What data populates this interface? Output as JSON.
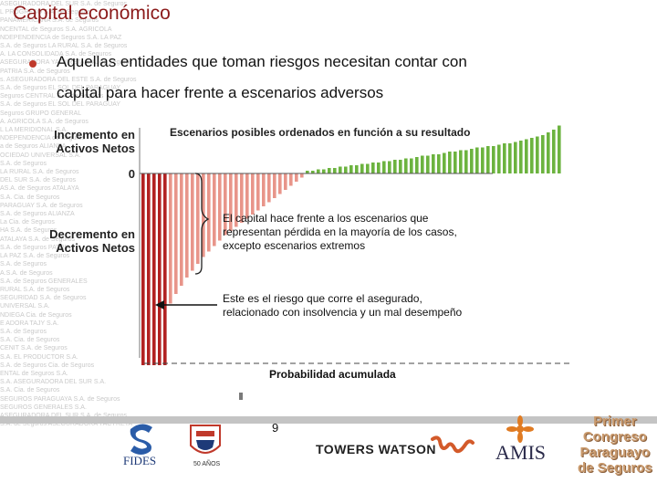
{
  "slide": {
    "title": "Capital económico",
    "bullet_line1": "Aquellas entidades que toman riesgos necesitan contar con",
    "bullet_line2": "capital para hacer frente a escenarios adversos",
    "page_number": "9"
  },
  "labels": {
    "increment_line1": "Incremento en",
    "increment_line2": "Activos Netos",
    "decrement_line1": "Decremento en",
    "decrement_line2": "Activos Netos",
    "zero": "0"
  },
  "notes": {
    "note1_line1": "El capital hace frente a los escenarios que",
    "note1_line2": "representan pérdida en la mayoría de los casos,",
    "note1_line3": "excepto escenarios extremos",
    "note2_line1": "Este es el riesgo que corre el asegurado,",
    "note2_line2": "relacionado con insolvencia y un mal desempeño"
  },
  "background_text": [
    "ASEGURADORA DEL SUR S.A. de Seguros",
    "L PROGRESO S.A. de Seguros",
    "PANAMERICANA S.A. de Seguros",
    "NCENTAL de Seguros S.A. AGRICOLA",
    "NDEPENDENCIA de Seguros S.A. LA PAZ",
    "S.A. de Seguros LA RURAL S.A. de Seguros",
    "A. LA CONSOLIDADA S.A. de Seguros",
    "ASEGURADORA YACYRETA S.A. de Seguros",
    "PATRIA S.A. de Seguros",
    "s. ASEGURADORA DEL ESTE S.A. de Seguros",
    "S.A. de Seguros EL SOL DEL PARAGUAY",
    "Seguros CENTRAL S.A. de Seguros",
    "S.A. de Seguros EL SOL DEL PARAGUAY",
    "Seguros GRUPO GENERAL",
    "A. AGRICOLA S.A. de Seguros",
    "L LA MERIDIONAL S.A.",
    "NDEPENDENCIA de Seguros",
    "a de Seguros ALIANZA",
    "OCIEDAD UNIVERSAL S.A.",
    "S.A. de Seguros",
    "LA RURAL S.A. de Seguros",
    "DEL SUR S.A. de Seguros",
    "AS.A. de Seguros ATALAYA",
    "S.A. Cia. de Seguros",
    "PARAGUAY S.A. de Seguros",
    "S.A. de Seguros ALIANZA",
    "La Cia. de Seguros",
    "HA S.A. de Seguros",
    "ATALAYA S.A. de Seguros",
    "S.A. de Seguros PATRIA",
    "LA PAZ S.A. de Seguros",
    "S.A. de Seguros",
    "A.S.A. de Seguros",
    "S.A. de Seguros GENERALES",
    "RURAL S.A. de Seguros",
    "SEGURIDAD S.A. de Seguros",
    "UNIVERSAL S.A.",
    "NDIEGA Cia. de Seguros",
    "E ADORA TAJY S.A.",
    "S.A. de Seguros",
    "S.A. Cia. de Seguros",
    "CENIT S.A. de Seguros",
    "S.A. EL PRODUCTOR S.A.",
    "S.A. de Seguros Cia. de Seguros",
    "ENTAL de Seguros S.A.",
    "S.A. ASEGURADORA DEL SUR S.A.",
    "S.A. Cia. de Seguros",
    "SEGUROS PARAGUAYA S.A. de Seguros",
    "SEGUROS GENERALES S.A.",
    "ASEGURADORA DEL SUR S.A. de Seguros",
    "S.A. de Seguros ASEGURADORA YACYRETA",
    "S.A. de Seguros S.A. de Seguros",
    "S.A. de Seguros EL SOL DEL PARAGUAY",
    "S.A. de Seguros LA MERIDIONAL",
    "S.A. de Seguros",
    "LA MERIDIONAL S.A.",
    "S.A. Cia. de Seguros",
    "SEGURADORA DEL SUR",
    "S.A. de Seguros ALIANZA",
    "A. de Seguros ATALAYA S.A. de Seguros"
  ],
  "logos": {
    "fides": "FIDES",
    "fifty_years": "50 AÑOS",
    "towers_watson": "TOWERS WATSON",
    "amis": "AMIS",
    "congreso": [
      "Primer",
      "Congreso",
      "Paraguayo",
      "de Seguros"
    ]
  },
  "colors": {
    "title": "#8B1A1A",
    "positive_bar": "#6cb33f",
    "negative_bar": "#e8958a",
    "extreme_bar": "#b22222"
  },
  "chart_data": {
    "type": "bar",
    "title": "Escenarios posibles ordenados en función a su resultado",
    "xlabel": "Probabilidad acumulada",
    "ylabel": "",
    "values": [
      -140,
      -140,
      -140,
      -140,
      -140,
      -95,
      -88,
      -82,
      -76,
      -71,
      -66,
      -61,
      -57,
      -53,
      -49,
      -45,
      -42,
      -39,
      -36,
      -33,
      -30,
      -27,
      -24,
      -21,
      -18,
      -15,
      -12,
      -9,
      -6,
      -3,
      2,
      2,
      3,
      3,
      4,
      4,
      5,
      5,
      6,
      6,
      7,
      7,
      8,
      8,
      9,
      9,
      10,
      10,
      11,
      11,
      12,
      13,
      13,
      14,
      14,
      15,
      16,
      16,
      17,
      17,
      18,
      19,
      19,
      20,
      20,
      21,
      22,
      22,
      23,
      24,
      25,
      26,
      27,
      28,
      30,
      32,
      35
    ]
  }
}
